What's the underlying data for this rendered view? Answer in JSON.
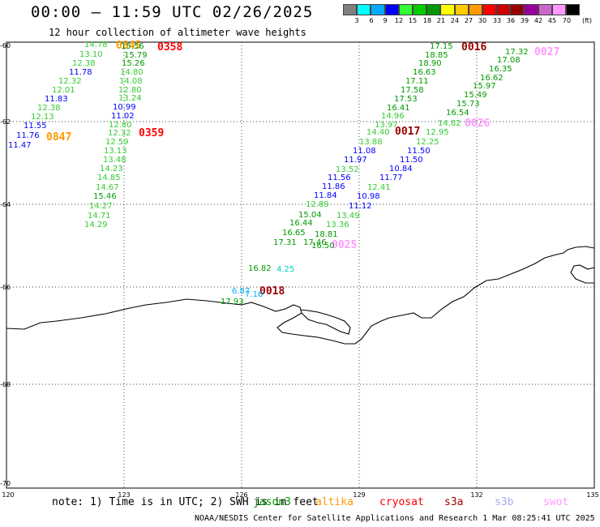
{
  "header": {
    "title": "00:00 – 11:59 UTC 02/26/2025",
    "subtitle": "12 hour collection of altimeter wave heights"
  },
  "colorbar": {
    "unit_label": "(ft)",
    "swatches": [
      "#808080",
      "#00ffff",
      "#00aaff",
      "#0000ff",
      "#33ff33",
      "#00cc00",
      "#009900",
      "#ffff00",
      "#ffcc00",
      "#ff9900",
      "#ff0000",
      "#cc0000",
      "#990000",
      "#990099",
      "#cc66cc",
      "#ff99ff",
      "#000000"
    ],
    "tick_labels": [
      "3",
      "6",
      "9",
      "12",
      "15",
      "18",
      "21",
      "24",
      "27",
      "30",
      "33",
      "36",
      "39",
      "42",
      "45",
      "70"
    ]
  },
  "axes": {
    "lat_labels": [
      "-60",
      "-62",
      "-64",
      "-66",
      "-68",
      "-70"
    ],
    "lon_labels": [
      "120",
      "123",
      "126",
      "129",
      "132",
      "135"
    ]
  },
  "map": {
    "time_labels": [
      {
        "text": "0845",
        "color": "#ff9900"
      },
      {
        "text": "0358",
        "color": "#ff0000"
      },
      {
        "text": "0847",
        "color": "#ff9900"
      },
      {
        "text": "0359",
        "color": "#ff0000"
      },
      {
        "text": "0016",
        "color": "#990000"
      },
      {
        "text": "0027",
        "color": "#ff99ff"
      },
      {
        "text": "0017",
        "color": "#990000"
      },
      {
        "text": "0026",
        "color": "#ff99ff"
      },
      {
        "text": "0025",
        "color": "#ff99ff"
      },
      {
        "text": "0018",
        "color": "#990000"
      }
    ],
    "swh_labels": [
      {
        "text": "14.78",
        "color": "#33cc33"
      },
      {
        "text": "13.10",
        "color": "#33cc33"
      },
      {
        "text": "12.38",
        "color": "#33cc33"
      },
      {
        "text": "11.78",
        "color": "#0000ff"
      },
      {
        "text": "12.32",
        "color": "#33cc33"
      },
      {
        "text": "12.01",
        "color": "#33cc33"
      },
      {
        "text": "11.83",
        "color": "#0000ff"
      },
      {
        "text": "12.38",
        "color": "#33cc33"
      },
      {
        "text": "12.13",
        "color": "#33cc33"
      },
      {
        "text": "11.55",
        "color": "#0000ff"
      },
      {
        "text": "11.76",
        "color": "#0000ff"
      },
      {
        "text": "11.47",
        "color": "#0000ff"
      },
      {
        "text": "15.56",
        "color": "#009900"
      },
      {
        "text": "15.79",
        "color": "#009900"
      },
      {
        "text": "15.26",
        "color": "#009900"
      },
      {
        "text": "14.80",
        "color": "#33cc33"
      },
      {
        "text": "14.08",
        "color": "#33cc33"
      },
      {
        "text": "12.80",
        "color": "#33cc33"
      },
      {
        "text": "13.24",
        "color": "#33cc33"
      },
      {
        "text": "10.99",
        "color": "#0000ff"
      },
      {
        "text": "11.02",
        "color": "#0000ff"
      },
      {
        "text": "12.80",
        "color": "#33cc33"
      },
      {
        "text": "12.32",
        "color": "#33cc33"
      },
      {
        "text": "12.59",
        "color": "#33cc33"
      },
      {
        "text": "13.13",
        "color": "#33cc33"
      },
      {
        "text": "13.48",
        "color": "#33cc33"
      },
      {
        "text": "14.23",
        "color": "#33cc33"
      },
      {
        "text": "14.85",
        "color": "#33cc33"
      },
      {
        "text": "14.67",
        "color": "#33cc33"
      },
      {
        "text": "15.46",
        "color": "#009900"
      },
      {
        "text": "14.27",
        "color": "#33cc33"
      },
      {
        "text": "14.71",
        "color": "#33cc33"
      },
      {
        "text": "14.29",
        "color": "#33cc33"
      },
      {
        "text": "17.15",
        "color": "#009900"
      },
      {
        "text": "18.85",
        "color": "#009900"
      },
      {
        "text": "18.90",
        "color": "#009900"
      },
      {
        "text": "16.63",
        "color": "#009900"
      },
      {
        "text": "17.11",
        "color": "#009900"
      },
      {
        "text": "17.58",
        "color": "#009900"
      },
      {
        "text": "17.53",
        "color": "#009900"
      },
      {
        "text": "16.41",
        "color": "#009900"
      },
      {
        "text": "14.96",
        "color": "#33cc33"
      },
      {
        "text": "13.97",
        "color": "#33cc33"
      },
      {
        "text": "14.40",
        "color": "#33cc33"
      },
      {
        "text": "13.88",
        "color": "#33cc33"
      },
      {
        "text": "11.08",
        "color": "#0000ff"
      },
      {
        "text": "11.97",
        "color": "#0000ff"
      },
      {
        "text": "13.52",
        "color": "#33cc33"
      },
      {
        "text": "11.56",
        "color": "#0000ff"
      },
      {
        "text": "11.86",
        "color": "#0000ff"
      },
      {
        "text": "11.84",
        "color": "#0000ff"
      },
      {
        "text": "12.89",
        "color": "#33cc33"
      },
      {
        "text": "15.04",
        "color": "#009900"
      },
      {
        "text": "16.44",
        "color": "#009900"
      },
      {
        "text": "16.65",
        "color": "#009900"
      },
      {
        "text": "17.31",
        "color": "#009900"
      },
      {
        "text": "17.46",
        "color": "#009900"
      },
      {
        "text": "18.81",
        "color": "#009900"
      },
      {
        "text": "16.50",
        "color": "#009900"
      },
      {
        "text": "13.49",
        "color": "#33cc33"
      },
      {
        "text": "13.36",
        "color": "#33cc33"
      },
      {
        "text": "17.32",
        "color": "#009900"
      },
      {
        "text": "17.08",
        "color": "#009900"
      },
      {
        "text": "16.35",
        "color": "#009900"
      },
      {
        "text": "16.62",
        "color": "#009900"
      },
      {
        "text": "15.97",
        "color": "#009900"
      },
      {
        "text": "15.49",
        "color": "#009900"
      },
      {
        "text": "15.73",
        "color": "#009900"
      },
      {
        "text": "16.54",
        "color": "#009900"
      },
      {
        "text": "14.82",
        "color": "#33cc33"
      },
      {
        "text": "12.95",
        "color": "#33cc33"
      },
      {
        "text": "12.25",
        "color": "#33cc33"
      },
      {
        "text": "11.50",
        "color": "#0000ff"
      },
      {
        "text": "11.50",
        "color": "#0000ff"
      },
      {
        "text": "10.84",
        "color": "#0000ff"
      },
      {
        "text": "11.77",
        "color": "#0000ff"
      },
      {
        "text": "12.41",
        "color": "#33cc33"
      },
      {
        "text": "10.98",
        "color": "#0000ff"
      },
      {
        "text": "11.12",
        "color": "#0000ff"
      },
      {
        "text": "16.82",
        "color": "#009900"
      },
      {
        "text": "4.25",
        "color": "#00cccc"
      },
      {
        "text": "6.87",
        "color": "#00aaff"
      },
      {
        "text": "7.16",
        "color": "#00aaff"
      },
      {
        "text": "17.93",
        "color": "#009900"
      }
    ]
  },
  "footer": {
    "note": "note: 1) Time is in UTC; 2) SWH is in feet",
    "satellites": [
      {
        "name": "jason3",
        "color": "#009900"
      },
      {
        "name": "altika",
        "color": "#ff9900"
      },
      {
        "name": "cryosat",
        "color": "#ff0000"
      },
      {
        "name": "s3a",
        "color": "#990000"
      },
      {
        "name": "s3b",
        "color": "#aaaaee"
      },
      {
        "name": "swot",
        "color": "#ff99ff"
      }
    ],
    "credit": "NOAA/NESDIS Center for Satellite Applications and Research    1 Mar 08:25:41 UTC 2025"
  }
}
